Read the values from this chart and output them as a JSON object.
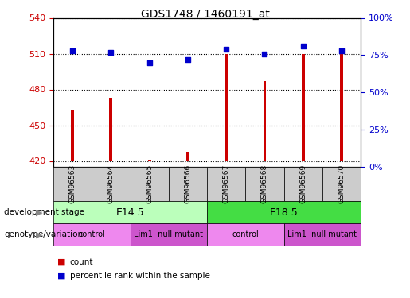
{
  "title": "GDS1748 / 1460191_at",
  "samples": [
    "GSM96563",
    "GSM96564",
    "GSM96565",
    "GSM96566",
    "GSM96567",
    "GSM96568",
    "GSM96569",
    "GSM96570"
  ],
  "counts": [
    463,
    473,
    421,
    428,
    510,
    487,
    510,
    510
  ],
  "percentiles": [
    78,
    77,
    70,
    72,
    79,
    76,
    81,
    78
  ],
  "ylim_left": [
    415,
    540
  ],
  "ylim_right": [
    0,
    100
  ],
  "yticks_left": [
    420,
    450,
    480,
    510,
    540
  ],
  "yticks_right": [
    0,
    25,
    50,
    75,
    100
  ],
  "bar_color": "#cc0000",
  "dot_color": "#0000cc",
  "bar_bottom": 420,
  "development_stages": [
    {
      "label": "E14.5",
      "start": 0,
      "end": 3,
      "color": "#bbffbb"
    },
    {
      "label": "E18.5",
      "start": 4,
      "end": 7,
      "color": "#44dd44"
    }
  ],
  "genotype_groups": [
    {
      "label": "control",
      "start": 0,
      "end": 1,
      "color": "#ee88ee"
    },
    {
      "label": "Lim1  null mutant",
      "start": 2,
      "end": 3,
      "color": "#cc55cc"
    },
    {
      "label": "control",
      "start": 4,
      "end": 5,
      "color": "#ee88ee"
    },
    {
      "label": "Lim1  null mutant",
      "start": 6,
      "end": 7,
      "color": "#cc55cc"
    }
  ],
  "background_color": "#ffffff",
  "tick_label_color_left": "#cc0000",
  "tick_label_color_right": "#0000cc",
  "label_area_color": "#cccccc"
}
